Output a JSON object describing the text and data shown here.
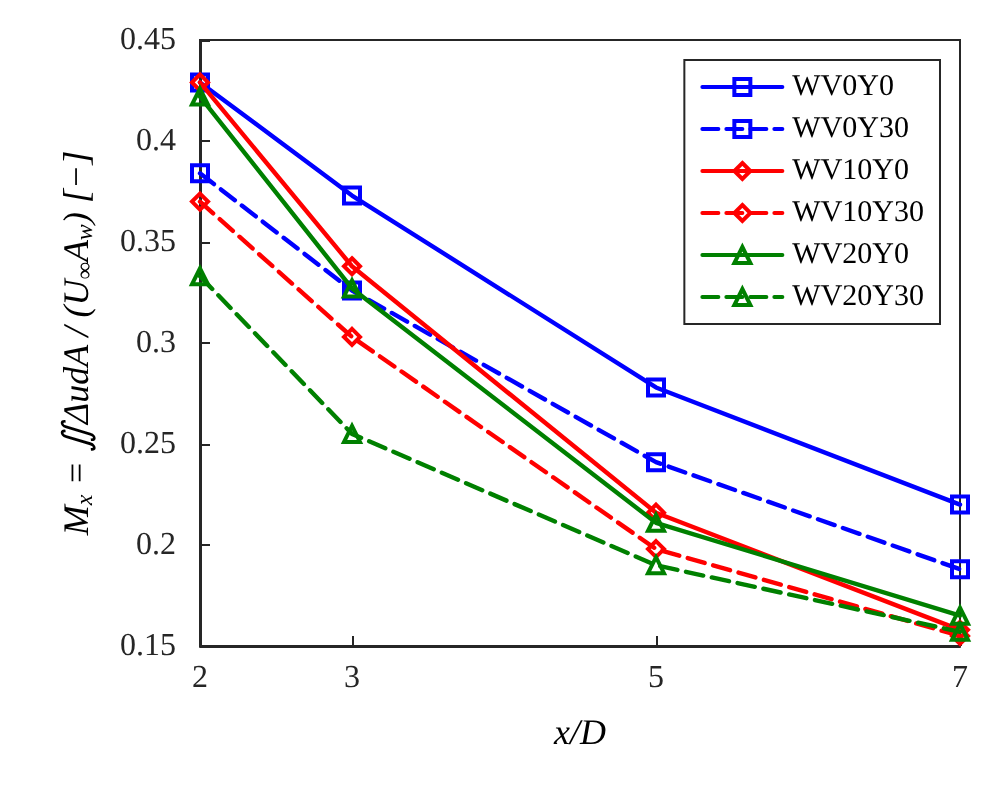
{
  "chart_data": {
    "type": "line",
    "xlabel": "x/D",
    "ylabel": "M$_{x}$ = ∬ΔudA / (U$_{∞}$A$_{w}$) [−]",
    "x": [
      2,
      3,
      5,
      7
    ],
    "xlim": [
      2,
      7
    ],
    "xticks": [
      2,
      3,
      5,
      7
    ],
    "ylim": [
      0.15,
      0.45
    ],
    "yticks": [
      0.15,
      0.2,
      0.25,
      0.3,
      0.35,
      0.4,
      0.45
    ],
    "grid": false,
    "legend": "top right",
    "series": [
      {
        "name": "WV0Y0",
        "color": "#0000ff",
        "marker": "square",
        "line_style": "solid",
        "values": [
          0.429,
          0.373,
          0.278,
          0.22
        ]
      },
      {
        "name": "WV0Y30",
        "color": "#0000ff",
        "marker": "square",
        "line_style": "dashed",
        "values": [
          0.384,
          0.326,
          0.241,
          0.188
        ]
      },
      {
        "name": "WV10Y0",
        "color": "#ff0000",
        "marker": "diamond",
        "line_style": "solid",
        "values": [
          0.429,
          0.338,
          0.216,
          0.158
        ]
      },
      {
        "name": "WV10Y30",
        "color": "#ff0000",
        "marker": "diamond",
        "line_style": "dashed",
        "values": [
          0.37,
          0.303,
          0.198,
          0.155
        ]
      },
      {
        "name": "WV20Y0",
        "color": "#008000",
        "marker": "triangle",
        "line_style": "solid",
        "values": [
          0.422,
          0.327,
          0.211,
          0.165
        ]
      },
      {
        "name": "WV20Y30",
        "color": "#008000",
        "marker": "triangle",
        "line_style": "dashed",
        "values": [
          0.333,
          0.255,
          0.19,
          0.157
        ]
      }
    ]
  }
}
